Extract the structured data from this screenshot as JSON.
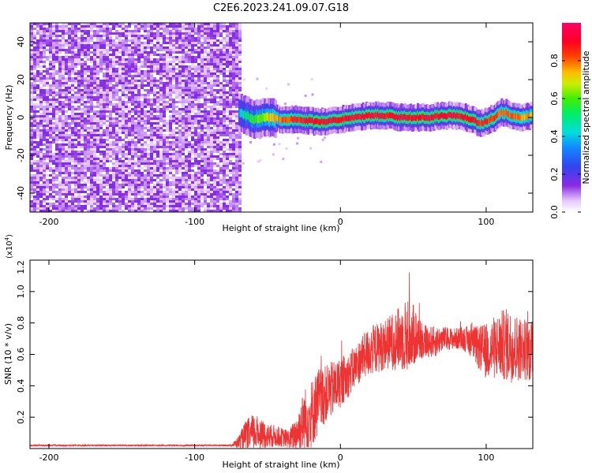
{
  "chart_data": [
    {
      "type": "heatmap",
      "title": "C2E6.2023.241.09.07.G18",
      "xlabel": "Height of straight line (km)",
      "ylabel": "Frequency (Hz)",
      "xlim": [
        -213,
        132
      ],
      "ylim": [
        -50,
        50
      ],
      "x_ticks": [
        -200,
        -100,
        0,
        100
      ],
      "x_tick_labels": [
        "-200",
        "-100",
        "0",
        "100"
      ],
      "y_ticks": [
        -40,
        -20,
        0,
        20,
        40
      ],
      "y_tick_labels": [
        "-40",
        "-20",
        "0",
        "20",
        "40"
      ],
      "colorbar": {
        "label": "Normalized spectral amplitude",
        "range": [
          0,
          1
        ],
        "ticks": [
          0.0,
          0.2,
          0.4,
          0.6,
          0.8
        ],
        "tick_labels": [
          "0.0",
          "0.2",
          "0.4",
          "0.6",
          "0.8"
        ],
        "colormap": "rainbow (white-violet-blue-cyan-green-yellow-red-magenta)"
      },
      "noise_region": {
        "x_range": [
          -213,
          -70
        ],
        "description_amplitude": 0.15
      },
      "signal_track": {
        "x": [
          -70,
          -65,
          -60,
          -50,
          -40,
          -30,
          -20,
          -10,
          0,
          10,
          20,
          30,
          40,
          50,
          60,
          70,
          80,
          90,
          95,
          100,
          105,
          110,
          115,
          120,
          125,
          130
        ],
        "freq": [
          3,
          1,
          -1,
          0,
          -1,
          -1,
          -2,
          -2,
          -1,
          0,
          1,
          1,
          0,
          0,
          0,
          1,
          1,
          -1,
          -3,
          -2,
          0,
          3,
          2,
          0,
          0,
          1
        ],
        "amplitude": [
          0.35,
          0.5,
          0.55,
          0.7,
          0.8,
          0.85,
          0.9,
          0.9,
          0.9,
          0.9,
          0.9,
          0.9,
          0.9,
          0.9,
          0.9,
          0.9,
          0.9,
          0.9,
          0.85,
          0.85,
          0.85,
          0.8,
          0.8,
          0.8,
          0.75,
          0.75
        ]
      }
    },
    {
      "type": "line",
      "xlabel": "Height of straight line (km)",
      "ylabel": "SNR (10 * v/v)",
      "y_multiplier_label": "(x10",
      "y_multiplier_exponent": "4",
      "y_multiplier_close": ")",
      "xlim": [
        -213,
        132
      ],
      "ylim": [
        0,
        1.2
      ],
      "x_ticks": [
        -200,
        -100,
        0,
        100
      ],
      "x_tick_labels": [
        "-200",
        "-100",
        "0",
        "100"
      ],
      "y_ticks": [
        0.2,
        0.4,
        0.6,
        0.8,
        1.0,
        1.2
      ],
      "y_tick_labels": [
        "0.2",
        "0.4",
        "0.6",
        "0.8",
        "1.0",
        "1.2"
      ],
      "color": "#ee3333",
      "series": [
        {
          "x": [
            -213,
            -100,
            -75,
            -70,
            -65,
            -60,
            -55,
            -50,
            -45,
            -40,
            -35,
            -30,
            -25,
            -20,
            -15,
            -10,
            -5,
            0,
            5,
            10,
            15,
            20,
            25,
            30,
            35,
            40,
            45,
            50,
            55,
            60,
            65,
            70,
            75,
            80,
            85,
            90,
            95,
            100,
            105,
            110,
            115,
            120,
            125,
            130
          ],
          "y": [
            0.02,
            0.02,
            0.02,
            0.04,
            0.08,
            0.1,
            0.1,
            0.08,
            0.08,
            0.07,
            0.06,
            0.1,
            0.18,
            0.22,
            0.3,
            0.35,
            0.38,
            0.42,
            0.46,
            0.52,
            0.58,
            0.62,
            0.64,
            0.66,
            0.68,
            0.7,
            0.72,
            0.72,
            0.7,
            0.68,
            0.68,
            0.7,
            0.7,
            0.7,
            0.7,
            0.68,
            0.64,
            0.62,
            0.64,
            0.66,
            0.66,
            0.64,
            0.64,
            0.62
          ],
          "spread": [
            0.005,
            0.005,
            0.005,
            0.04,
            0.1,
            0.12,
            0.1,
            0.08,
            0.07,
            0.06,
            0.06,
            0.12,
            0.2,
            0.22,
            0.22,
            0.18,
            0.18,
            0.16,
            0.14,
            0.14,
            0.14,
            0.16,
            0.16,
            0.16,
            0.18,
            0.2,
            0.24,
            0.2,
            0.14,
            0.1,
            0.1,
            0.08,
            0.07,
            0.07,
            0.08,
            0.1,
            0.14,
            0.18,
            0.2,
            0.22,
            0.24,
            0.22,
            0.2,
            0.2
          ]
        }
      ]
    }
  ]
}
